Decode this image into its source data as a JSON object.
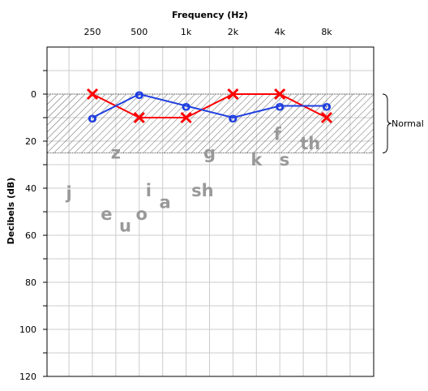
{
  "chart_data": {
    "type": "line",
    "title": "",
    "xlabel": "Frequency (Hz)",
    "ylabel": "Decibels (dB)",
    "categories": [
      "250",
      "500",
      "1k",
      "2k",
      "4k",
      "8k"
    ],
    "y_ticks": [
      "0",
      "20",
      "40",
      "60",
      "80",
      "100",
      "120"
    ],
    "ylim": [
      -20,
      120
    ],
    "y_inverted": true,
    "grid": true,
    "normal_band": {
      "label": "Normal",
      "range": [
        0,
        25
      ]
    },
    "series": [
      {
        "marker": "x",
        "color": "#ff0000",
        "values": [
          0,
          10,
          10,
          0,
          0,
          10
        ]
      },
      {
        "marker": "o",
        "color": "#1f3fe0",
        "values": [
          10,
          0,
          5,
          10,
          5,
          5
        ],
        "glyph": "o"
      }
    ],
    "annotations": [
      {
        "text": "z",
        "x": 0.5,
        "y": 25
      },
      {
        "text": "g",
        "x": 2.5,
        "y": 25
      },
      {
        "text": "k",
        "x": 3.5,
        "y": 28
      },
      {
        "text": "f",
        "x": 3.95,
        "y": 17
      },
      {
        "text": "s",
        "x": 4.1,
        "y": 28
      },
      {
        "text": "th",
        "x": 4.65,
        "y": 21
      },
      {
        "text": "j",
        "x": -0.5,
        "y": 42
      },
      {
        "text": "i",
        "x": 1.2,
        "y": 41
      },
      {
        "text": "sh",
        "x": 2.35,
        "y": 41
      },
      {
        "text": "a",
        "x": 1.55,
        "y": 46
      },
      {
        "text": "e",
        "x": 0.3,
        "y": 51
      },
      {
        "text": "o",
        "x": 1.05,
        "y": 51
      },
      {
        "text": "u",
        "x": 0.7,
        "y": 56
      }
    ]
  }
}
